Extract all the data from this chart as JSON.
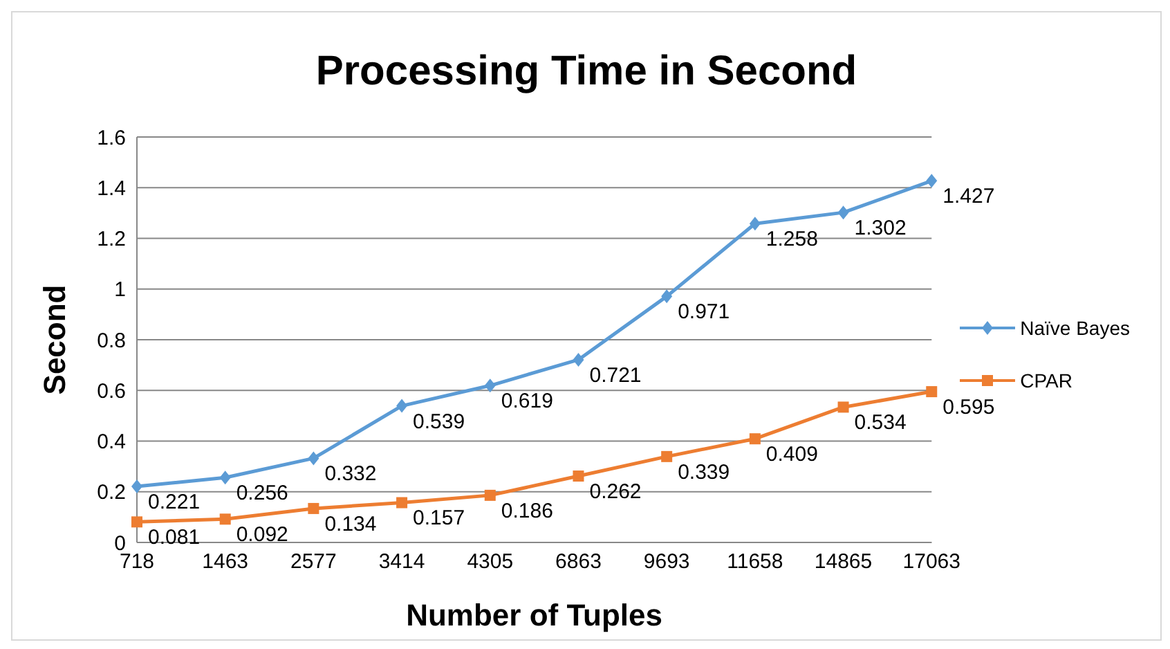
{
  "chart_data": {
    "type": "line",
    "title": "Processing Time in Second",
    "xlabel": "Number of Tuples",
    "ylabel": "Second",
    "categories": [
      "718",
      "1463",
      "2577",
      "3414",
      "4305",
      "6863",
      "9693",
      "11658",
      "14865",
      "17063"
    ],
    "series": [
      {
        "name": "Naïve Bayes",
        "color": "#5b9bd5",
        "marker": "diamond",
        "values": [
          0.221,
          0.256,
          0.332,
          0.539,
          0.619,
          0.721,
          0.971,
          1.258,
          1.302,
          1.427
        ]
      },
      {
        "name": "CPAR",
        "color": "#ed7d31",
        "marker": "square",
        "values": [
          0.081,
          0.092,
          0.134,
          0.157,
          0.186,
          0.262,
          0.339,
          0.409,
          0.534,
          0.595
        ]
      }
    ],
    "ylim": [
      0,
      1.6
    ],
    "yticks": [
      0,
      0.2,
      0.4,
      0.6,
      0.8,
      1,
      1.2,
      1.4,
      1.6
    ],
    "grid": "y",
    "legend": "right",
    "data_labels": true,
    "line_style": "solid"
  }
}
